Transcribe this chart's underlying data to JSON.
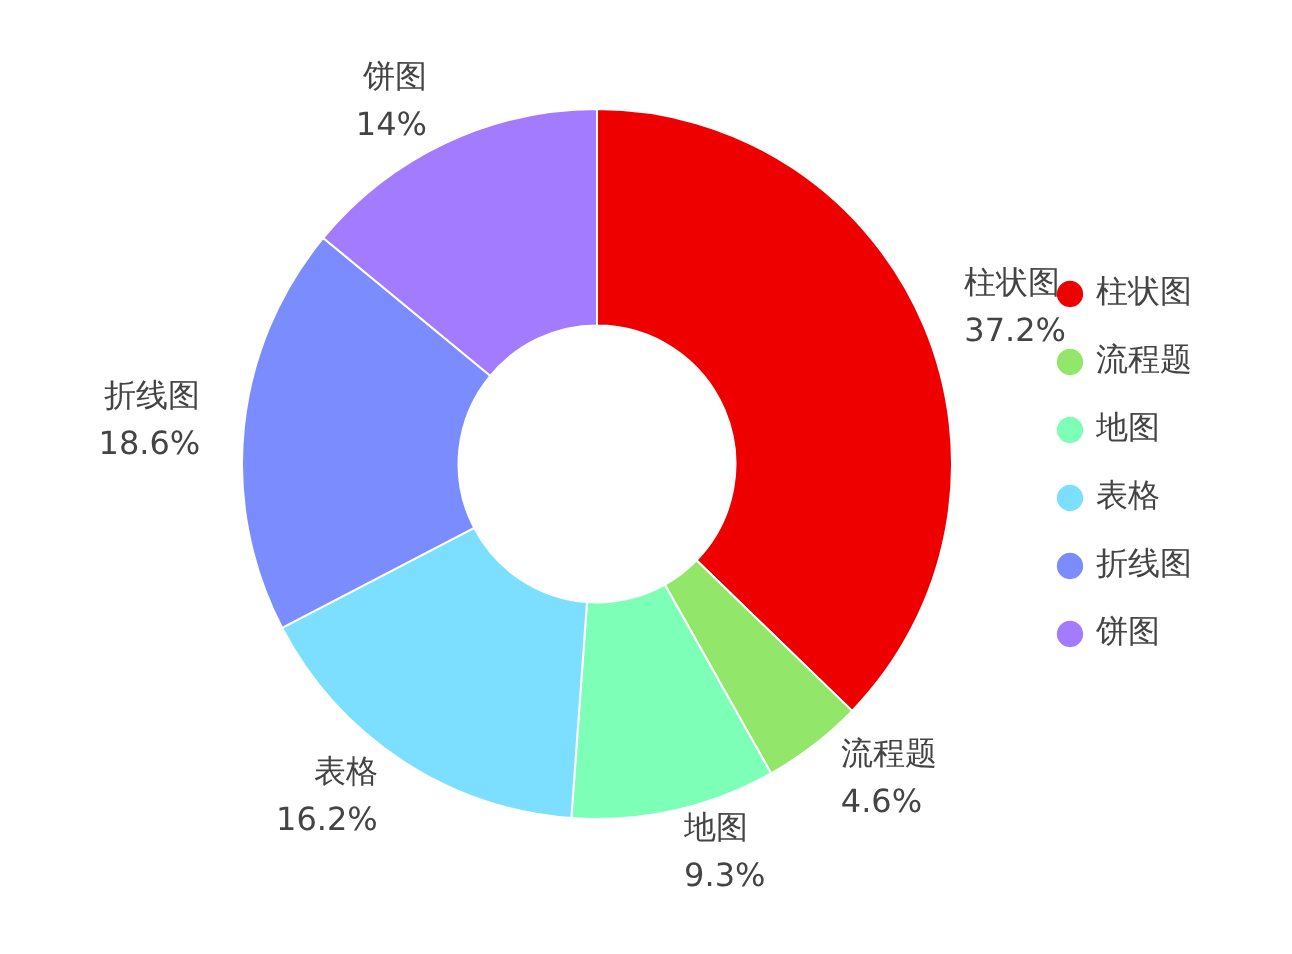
{
  "chart_data": {
    "type": "donut",
    "categories": [
      "柱状图",
      "流程题",
      "地图",
      "表格",
      "折线图",
      "饼图"
    ],
    "values": [
      37.2,
      4.6,
      9.3,
      16.2,
      18.6,
      14
    ],
    "value_labels": [
      "37.2%",
      "4.6%",
      "9.3%",
      "16.2%",
      "18.6%",
      "14%"
    ],
    "colors": [
      "#ee0000",
      "#92e66a",
      "#7dffb8",
      "#7ddfff",
      "#7b8cff",
      "#a27bff"
    ],
    "legend": "right"
  }
}
